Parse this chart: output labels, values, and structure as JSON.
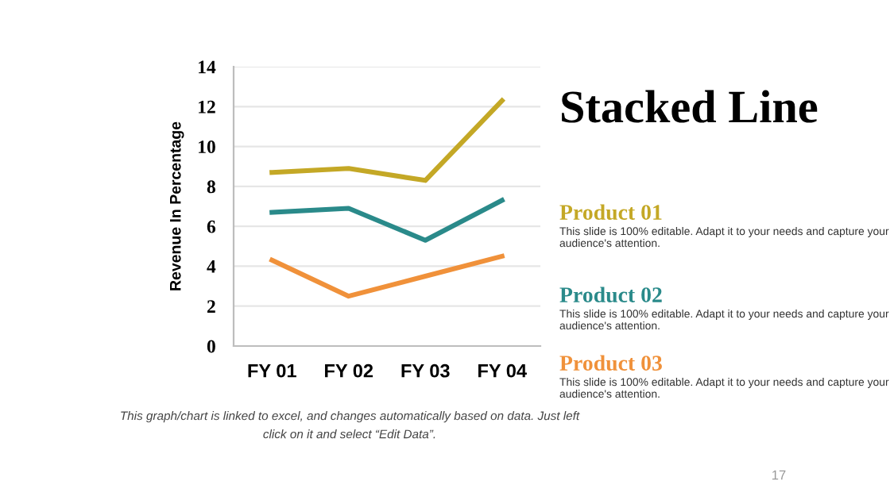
{
  "chart_data": {
    "type": "line",
    "title": "Stacked Line",
    "ylabel": "Revenue In Percentage",
    "categories": [
      "FY 01",
      "FY 02",
      "FY 03",
      "FY 04"
    ],
    "series": [
      {
        "name": "Product 01",
        "color": "#c4a826",
        "values": [
          8.7,
          8.9,
          8.3,
          12.3
        ]
      },
      {
        "name": "Product 02",
        "color": "#2a8a8a",
        "values": [
          6.7,
          6.9,
          5.3,
          7.3
        ]
      },
      {
        "name": "Product 03",
        "color": "#f0913a",
        "values": [
          4.3,
          2.5,
          3.5,
          4.5
        ]
      }
    ],
    "ylim": [
      0,
      14
    ],
    "yticks": [
      0,
      2,
      4,
      6,
      8,
      10,
      12,
      14
    ],
    "grid": "y",
    "marker": "none",
    "line_style": "solid",
    "annotations": [
      "This slide is 100% editable. Adapt it to your needs and capture your audience's attention.",
      "This slide is 100% editable. Adapt it to your needs and capture your audience's attention.",
      "This slide is 100% editable. Adapt it to your needs and capture your audience's attention.",
      "This graph/chart is linked to excel, and changes automatically based on data. Just left click on it and select “Edit Data”.",
      "17"
    ]
  }
}
